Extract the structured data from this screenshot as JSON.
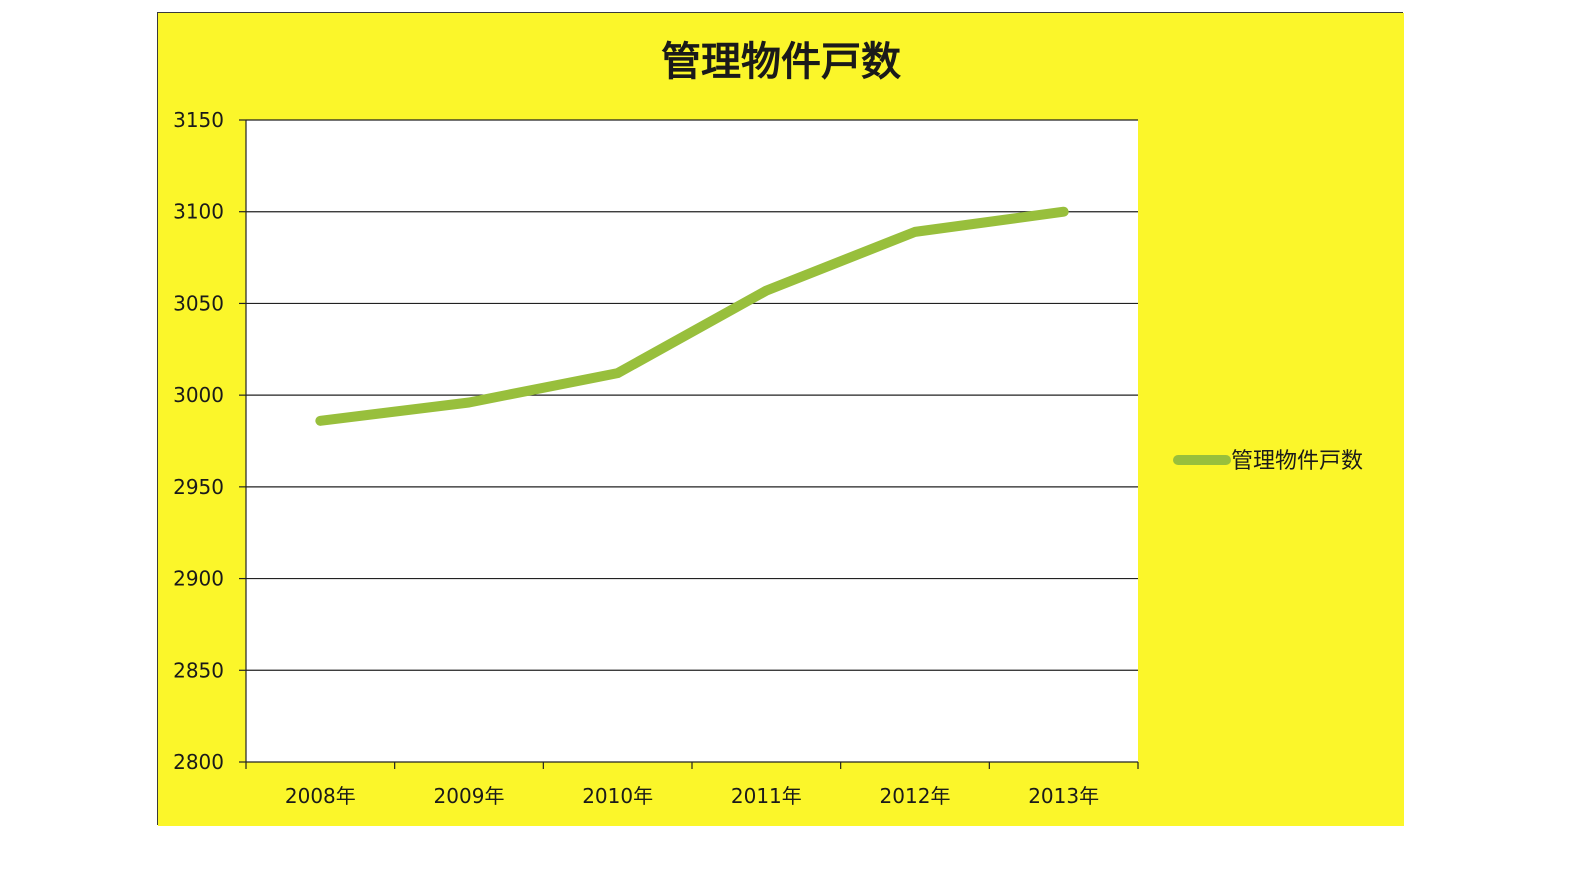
{
  "colors": {
    "background": "#fbf62a",
    "plot_area": "#ffffff",
    "series_line": "#98bf3c",
    "gridline": "#222222",
    "text": "#1a1a1a"
  },
  "chart_data": {
    "type": "line",
    "title": "管理物件戸数",
    "categories": [
      "2008年",
      "2009年",
      "2010年",
      "2011年",
      "2012年",
      "2013年"
    ],
    "series": [
      {
        "name": "管理物件戸数",
        "values": [
          2986,
          2996,
          3012,
          3057,
          3089,
          3100
        ]
      }
    ],
    "ylim": [
      2800,
      3150
    ],
    "yticks": [
      2800,
      2850,
      2900,
      2950,
      3000,
      3050,
      3100,
      3150
    ],
    "grid": true,
    "legend": "right"
  }
}
